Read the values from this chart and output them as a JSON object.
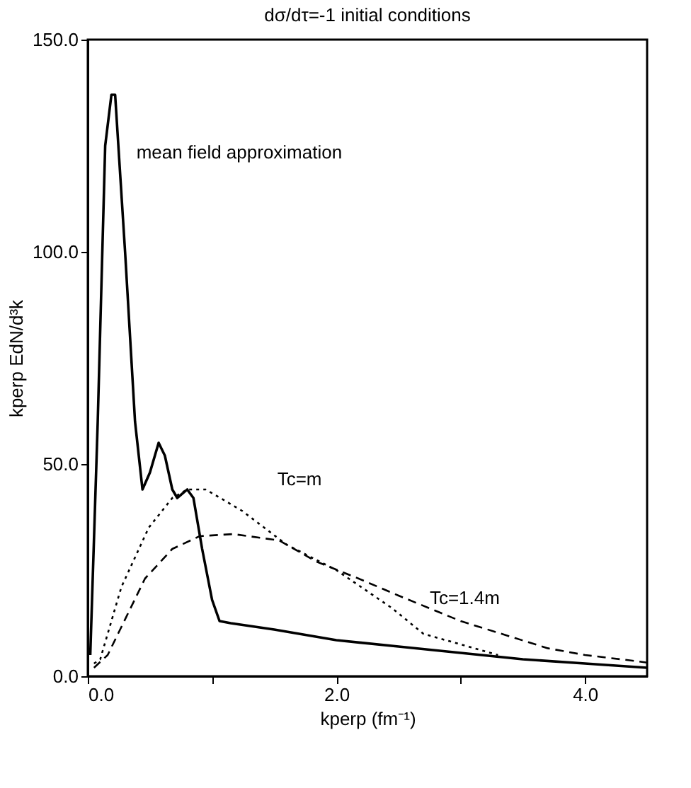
{
  "chart_data": {
    "type": "line",
    "title": "dσ/dτ=-1   initial conditions",
    "xlabel": "kperp (fm⁻¹)",
    "ylabel": "kperp EdN/d³k",
    "xlim": [
      0,
      4.5
    ],
    "xticks": [
      {
        "value": 0,
        "label": "0.0"
      },
      {
        "value": 1,
        "label": null
      },
      {
        "value": 2,
        "label": "2.0"
      },
      {
        "value": 3,
        "label": null
      },
      {
        "value": 4,
        "label": "4.0"
      }
    ],
    "ylim": [
      0,
      150
    ],
    "yticks": [
      {
        "value": 0,
        "label": "0.0"
      },
      {
        "value": 50,
        "label": "50.0"
      },
      {
        "value": 100,
        "label": "100.0"
      },
      {
        "value": 150,
        "label": "150.0"
      }
    ],
    "grid": false,
    "series": [
      {
        "name": "mean field approximation",
        "color": "#000000",
        "line_style": "solid",
        "x": [
          0.02,
          0.08,
          0.14,
          0.19,
          0.22,
          0.3,
          0.38,
          0.44,
          0.5,
          0.57,
          0.62,
          0.68,
          0.72,
          0.8,
          0.85,
          0.92,
          1.0,
          1.06,
          1.15,
          1.5,
          2.0,
          2.5,
          3.0,
          3.5,
          4.0,
          4.5
        ],
        "values": [
          5,
          60,
          125,
          137,
          137,
          100,
          60,
          44,
          48,
          55,
          52,
          44,
          42,
          44,
          42,
          30,
          18,
          13,
          12.5,
          11,
          8.5,
          7,
          5.5,
          4,
          3,
          2
        ]
      },
      {
        "name": "Tc=m",
        "color": "#000000",
        "line_style": "dotted",
        "x": [
          0.05,
          0.1,
          0.27,
          0.49,
          0.68,
          0.8,
          0.95,
          1.24,
          1.6,
          2.0,
          2.2,
          2.45,
          2.7,
          3.0,
          3.3
        ],
        "values": [
          3,
          4,
          21,
          35,
          42,
          44,
          44,
          39,
          31,
          25,
          21,
          16,
          10,
          7.5,
          5
        ]
      },
      {
        "name": "Tc=1.4m",
        "color": "#000000",
        "line_style": "dashed",
        "x": [
          0.05,
          0.16,
          0.46,
          0.68,
          0.9,
          1.17,
          1.54,
          1.84,
          2.18,
          2.5,
          3.0,
          3.7,
          4.0,
          4.4,
          4.5
        ],
        "values": [
          2,
          5,
          23,
          30,
          33,
          33.5,
          32,
          27,
          23,
          19,
          13,
          6.6,
          5,
          3.6,
          3.2
        ]
      }
    ]
  }
}
